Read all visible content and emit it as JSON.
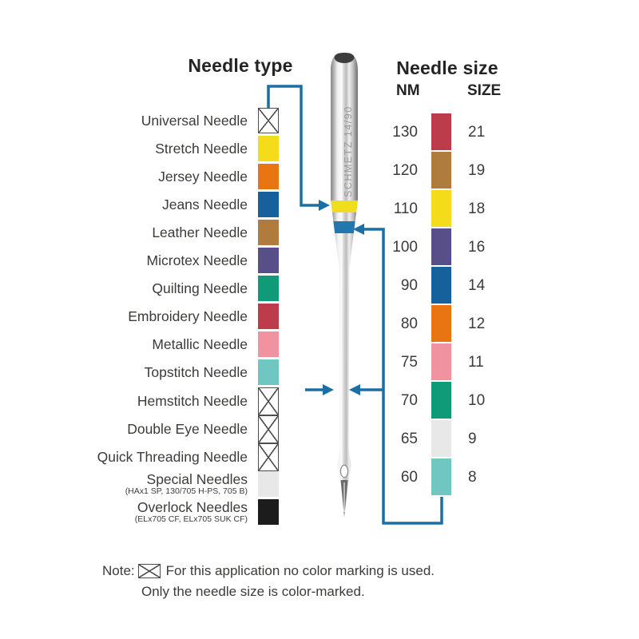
{
  "titles": {
    "left": "Needle type",
    "right": "Needle size",
    "nm": "NM",
    "size_header": "SIZE"
  },
  "needle": {
    "engraving": "SCHMETZ 14/90"
  },
  "colors": {
    "connector": "#1C6FA5",
    "band_yellow": "#F2DC1E",
    "band_blue": "#2277AE",
    "text": "#3B3B3A",
    "crosshatch_line": "#4D4D4D"
  },
  "needle_types": [
    {
      "label": "Universal Needle",
      "color": "crosshatch"
    },
    {
      "label": "Stretch Needle",
      "color": "#F4DC1B"
    },
    {
      "label": "Jersey Needle",
      "color": "#E97412"
    },
    {
      "label": "Jeans Needle",
      "color": "#16619C"
    },
    {
      "label": "Leather Needle",
      "color": "#B07C3E"
    },
    {
      "label": "Microtex Needle",
      "color": "#584E88"
    },
    {
      "label": "Quilting Needle",
      "color": "#0F9B78"
    },
    {
      "label": "Embroidery Needle",
      "color": "#BC3C4C"
    },
    {
      "label": "Metallic Needle",
      "color": "#F192A1"
    },
    {
      "label": "Topstitch Needle",
      "color": "#70C6C1"
    },
    {
      "label": "Hemstitch Needle",
      "color": "crosshatch"
    },
    {
      "label": "Double Eye Needle",
      "color": "crosshatch"
    },
    {
      "label": "Quick Threading Needle",
      "color": "crosshatch"
    },
    {
      "label": "Special Needles",
      "sub": "(HAx1 SP, 130/705 H-PS, 705 B)",
      "color": "#E8E8E8"
    },
    {
      "label": "Overlock Needles",
      "sub": "(ELx705 CF, ELx705 SUK CF)",
      "color": "#1C1C1C"
    }
  ],
  "needle_sizes": [
    {
      "nm": "130",
      "size": "21",
      "color": "#BC3C4C"
    },
    {
      "nm": "120",
      "size": "19",
      "color": "#B07C3E"
    },
    {
      "nm": "110",
      "size": "18",
      "color": "#F4DC1B"
    },
    {
      "nm": "100",
      "size": "16",
      "color": "#584E88"
    },
    {
      "nm": "90",
      "size": "14",
      "color": "#16619C"
    },
    {
      "nm": "80",
      "size": "12",
      "color": "#E97412"
    },
    {
      "nm": "75",
      "size": "11",
      "color": "#F192A1"
    },
    {
      "nm": "70",
      "size": "10",
      "color": "#0F9B78"
    },
    {
      "nm": "65",
      "size": "9",
      "color": "#E8E8E8"
    },
    {
      "nm": "60",
      "size": "8",
      "color": "#70C6C1"
    }
  ],
  "note": {
    "prefix": "Note:",
    "line1": "For this application no color marking is used.",
    "line2": "Only the needle size is color-marked."
  }
}
